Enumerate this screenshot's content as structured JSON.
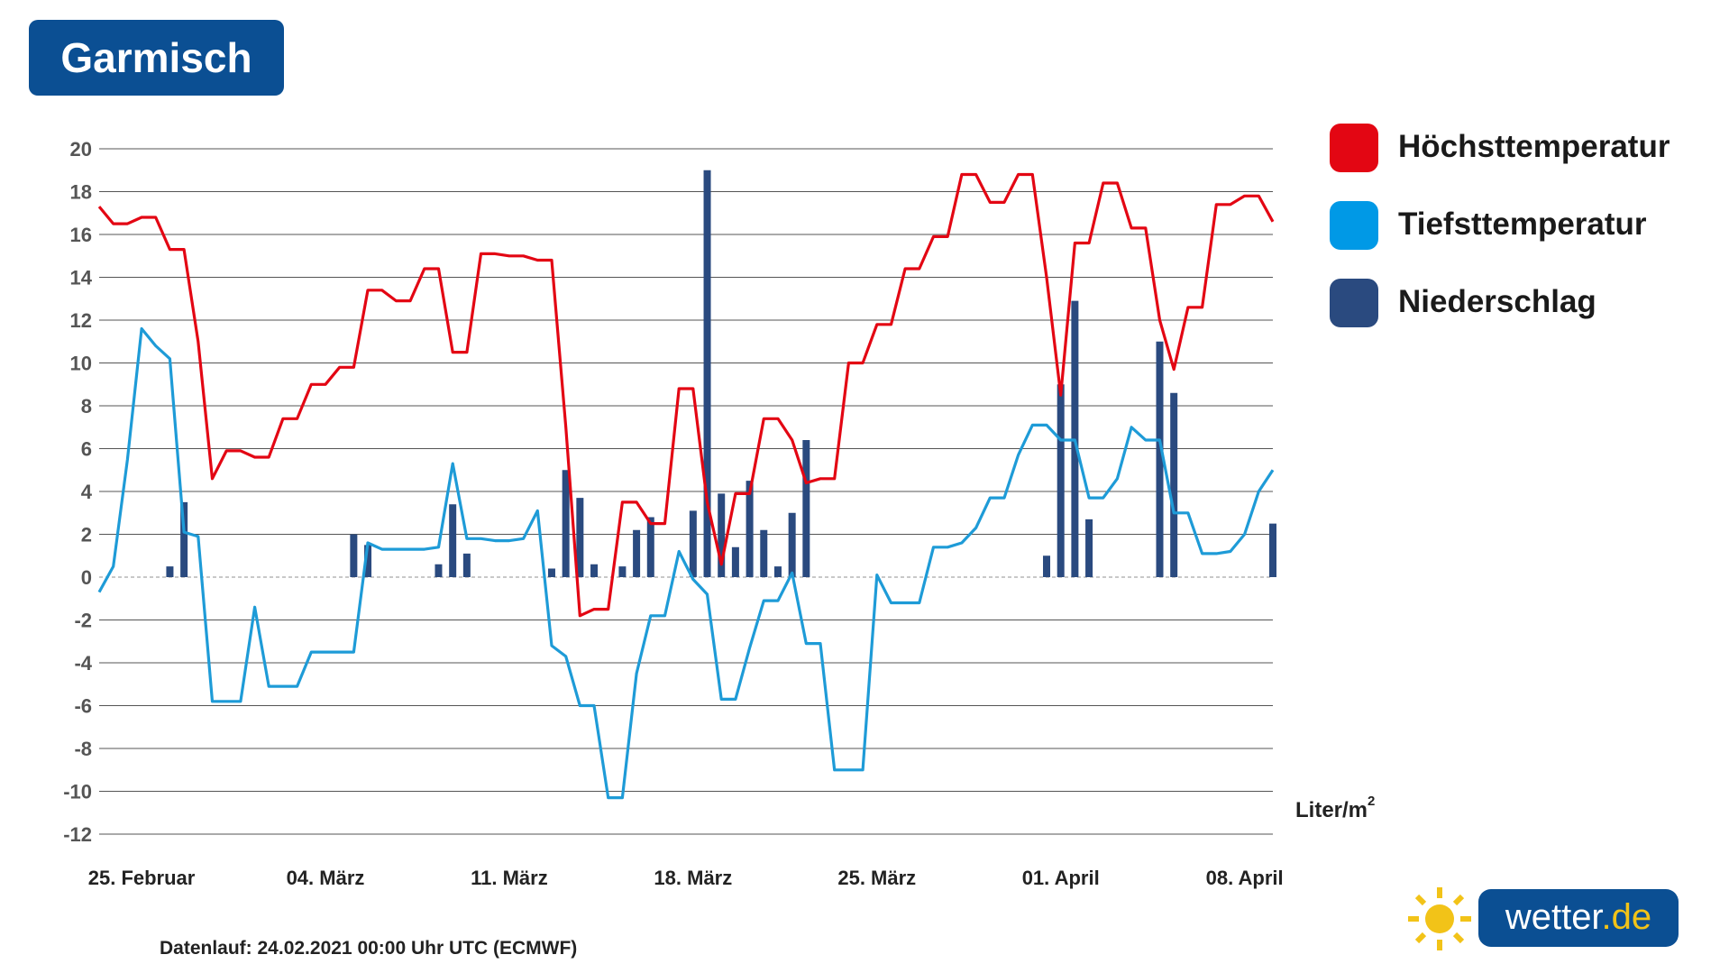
{
  "title": "Garmisch",
  "footnote": "Datenlauf: 24.02.2021 00:00 Uhr UTC (ECMWF)",
  "unit_label": {
    "text": "Liter/m",
    "sup": "2"
  },
  "logo": {
    "name": "wetter",
    "tld": ".de"
  },
  "legend": [
    {
      "label": "Höchsttemperatur",
      "color": "#e30613"
    },
    {
      "label": "Tiefsttemperatur",
      "color": "#0099e6"
    },
    {
      "label": "Niederschlag",
      "color": "#2a4a7f"
    }
  ],
  "chart_data": {
    "type": "line",
    "ylim": [
      -12,
      20
    ],
    "yticks": [
      20,
      18,
      16,
      14,
      12,
      10,
      8,
      6,
      4,
      2,
      0,
      -2,
      -4,
      -6,
      -8,
      -10,
      -12
    ],
    "grid": true,
    "legend_position": "right",
    "xtick_labels": [
      {
        "label": "25. Februar",
        "index": 3
      },
      {
        "label": "04. März",
        "index": 16
      },
      {
        "label": "11. März",
        "index": 29
      },
      {
        "label": "18. März",
        "index": 42
      },
      {
        "label": "25. März",
        "index": 55
      },
      {
        "label": "01. April",
        "index": 68
      },
      {
        "label": "08. April",
        "index": 81
      }
    ],
    "series": [
      {
        "name": "Höchsttemperatur",
        "type": "line",
        "color": "#e30613",
        "values": [
          17.3,
          16.5,
          16.5,
          16.8,
          16.8,
          15.3,
          15.3,
          11,
          4.6,
          5.9,
          5.9,
          5.6,
          5.6,
          7.4,
          7.4,
          9,
          9,
          9.8,
          9.8,
          13.4,
          13.4,
          12.9,
          12.9,
          14.4,
          14.4,
          10.5,
          10.5,
          15.1,
          15.1,
          15,
          15,
          14.8,
          14.8,
          7,
          -1.8,
          -1.5,
          -1.5,
          3.5,
          3.5,
          2.5,
          2.5,
          8.8,
          8.8,
          3.5,
          0.6,
          3.9,
          3.9,
          7.4,
          7.4,
          6.4,
          4.4,
          4.6,
          4.6,
          10,
          10,
          11.8,
          11.8,
          14.4,
          14.4,
          15.9,
          15.9,
          18.8,
          18.8,
          17.5,
          17.5,
          18.8,
          18.8,
          14,
          8.5,
          15.6,
          15.6,
          18.4,
          18.4,
          16.3,
          16.3,
          12,
          9.7,
          12.6,
          12.6,
          17.4,
          17.4,
          17.8,
          17.8,
          16.6
        ]
      },
      {
        "name": "Tiefsttemperatur",
        "type": "line",
        "color": "#1e9bd7",
        "values": [
          -0.7,
          0.5,
          5.5,
          11.6,
          10.8,
          10.2,
          2.1,
          1.9,
          -5.8,
          -5.8,
          -5.8,
          -1.4,
          -5.1,
          -5.1,
          -5.1,
          -3.5,
          -3.5,
          -3.5,
          -3.5,
          1.6,
          1.3,
          1.3,
          1.3,
          1.3,
          1.4,
          5.3,
          1.8,
          1.8,
          1.7,
          1.7,
          1.8,
          3.1,
          -3.2,
          -3.7,
          -6,
          -6,
          -10.3,
          -10.3,
          -4.5,
          -1.8,
          -1.8,
          1.2,
          -0.1,
          -0.8,
          -5.7,
          -5.7,
          -3.3,
          -1.1,
          -1.1,
          0.2,
          -3.1,
          -3.1,
          -9,
          -9,
          -9,
          0.1,
          -1.2,
          -1.2,
          -1.2,
          1.4,
          1.4,
          1.6,
          2.3,
          3.7,
          3.7,
          5.7,
          7.1,
          7.1,
          6.4,
          6.4,
          3.7,
          3.7,
          4.6,
          7,
          6.4,
          6.4,
          3,
          3,
          1.1,
          1.1,
          1.2,
          2,
          4,
          5
        ]
      },
      {
        "name": "Niederschlag",
        "type": "bar",
        "color": "#2a4a7f",
        "unit": "Liter/m2",
        "values": [
          {
            "index": 5,
            "value": 0.5
          },
          {
            "index": 6,
            "value": 3.5
          },
          {
            "index": 18,
            "value": 2
          },
          {
            "index": 19,
            "value": 1.5
          },
          {
            "index": 24,
            "value": 0.6
          },
          {
            "index": 25,
            "value": 3.4
          },
          {
            "index": 26,
            "value": 1.1
          },
          {
            "index": 32,
            "value": 0.4
          },
          {
            "index": 33,
            "value": 5
          },
          {
            "index": 34,
            "value": 3.7
          },
          {
            "index": 35,
            "value": 0.6
          },
          {
            "index": 37,
            "value": 0.5
          },
          {
            "index": 38,
            "value": 2.2
          },
          {
            "index": 39,
            "value": 2.8
          },
          {
            "index": 42,
            "value": 3.1
          },
          {
            "index": 43,
            "value": 19
          },
          {
            "index": 44,
            "value": 3.9
          },
          {
            "index": 45,
            "value": 1.4
          },
          {
            "index": 46,
            "value": 4.5
          },
          {
            "index": 47,
            "value": 2.2
          },
          {
            "index": 48,
            "value": 0.5
          },
          {
            "index": 49,
            "value": 3
          },
          {
            "index": 50,
            "value": 6.4
          },
          {
            "index": 67,
            "value": 1
          },
          {
            "index": 68,
            "value": 9
          },
          {
            "index": 69,
            "value": 12.9
          },
          {
            "index": 70,
            "value": 2.7
          },
          {
            "index": 75,
            "value": 11
          },
          {
            "index": 76,
            "value": 8.6
          },
          {
            "index": 83,
            "value": 2.5
          }
        ]
      }
    ]
  }
}
